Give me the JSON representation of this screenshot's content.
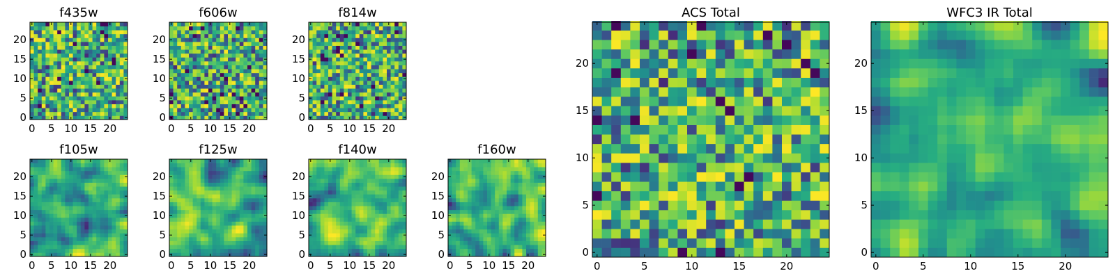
{
  "chart_data": [
    {
      "type": "heatmap",
      "title": "f435w",
      "grid_size": 25,
      "colormap": "viridis",
      "xticks": [
        0,
        5,
        10,
        15,
        20
      ],
      "yticks": [
        0,
        5,
        10,
        15,
        20
      ],
      "xlim": [
        0,
        24
      ],
      "ylim": [
        0,
        24
      ],
      "style": "noise",
      "seed": 11,
      "values": []
    },
    {
      "type": "heatmap",
      "title": "f606w",
      "grid_size": 25,
      "colormap": "viridis",
      "xticks": [
        0,
        5,
        10,
        15,
        20
      ],
      "yticks": [
        0,
        5,
        10,
        15,
        20
      ],
      "xlim": [
        0,
        24
      ],
      "ylim": [
        0,
        24
      ],
      "style": "noise",
      "seed": 23,
      "values": []
    },
    {
      "type": "heatmap",
      "title": "f814w",
      "grid_size": 25,
      "colormap": "viridis",
      "xticks": [
        0,
        5,
        10,
        15,
        20
      ],
      "yticks": [
        0,
        5,
        10,
        15,
        20
      ],
      "xlim": [
        0,
        24
      ],
      "ylim": [
        0,
        24
      ],
      "style": "noise",
      "seed": 37,
      "values": []
    },
    {
      "type": "heatmap",
      "title": "f105w",
      "grid_size": 25,
      "colormap": "viridis",
      "xticks": [
        0,
        5,
        10,
        15,
        20
      ],
      "yticks": [
        0,
        5,
        10,
        15,
        20
      ],
      "xlim": [
        0,
        24
      ],
      "ylim": [
        0,
        24
      ],
      "style": "smooth",
      "seed": 41,
      "values": []
    },
    {
      "type": "heatmap",
      "title": "f125w",
      "grid_size": 25,
      "colormap": "viridis",
      "xticks": [
        0,
        5,
        10,
        15,
        20
      ],
      "yticks": [
        0,
        5,
        10,
        15,
        20
      ],
      "xlim": [
        0,
        24
      ],
      "ylim": [
        0,
        24
      ],
      "style": "smooth",
      "seed": 53,
      "values": []
    },
    {
      "type": "heatmap",
      "title": "f140w",
      "grid_size": 25,
      "colormap": "viridis",
      "xticks": [
        0,
        5,
        10,
        15,
        20
      ],
      "yticks": [
        0,
        5,
        10,
        15,
        20
      ],
      "xlim": [
        0,
        24
      ],
      "ylim": [
        0,
        24
      ],
      "style": "smooth",
      "seed": 67,
      "values": []
    },
    {
      "type": "heatmap",
      "title": "f160w",
      "grid_size": 25,
      "colormap": "viridis",
      "xticks": [
        0,
        5,
        10,
        15,
        20
      ],
      "yticks": [
        0,
        5,
        10,
        15,
        20
      ],
      "xlim": [
        0,
        24
      ],
      "ylim": [
        0,
        24
      ],
      "style": "smooth",
      "seed": 79,
      "values": []
    },
    {
      "type": "heatmap",
      "title": "ACS Total",
      "grid_size": 25,
      "colormap": "viridis",
      "xticks": [
        0,
        5,
        10,
        15,
        20
      ],
      "yticks": [
        0,
        5,
        10,
        15,
        20
      ],
      "xlim": [
        0,
        24
      ],
      "ylim": [
        0,
        24
      ],
      "style": "noise",
      "seed": 97,
      "values": []
    },
    {
      "type": "heatmap",
      "title": "WFC3 IR Total",
      "grid_size": 25,
      "colormap": "viridis",
      "xticks": [
        0,
        5,
        10,
        15,
        20
      ],
      "yticks": [
        0,
        5,
        10,
        15,
        20
      ],
      "xlim": [
        0,
        24
      ],
      "ylim": [
        0,
        24
      ],
      "style": "smooth",
      "seed": 113,
      "values": []
    }
  ]
}
